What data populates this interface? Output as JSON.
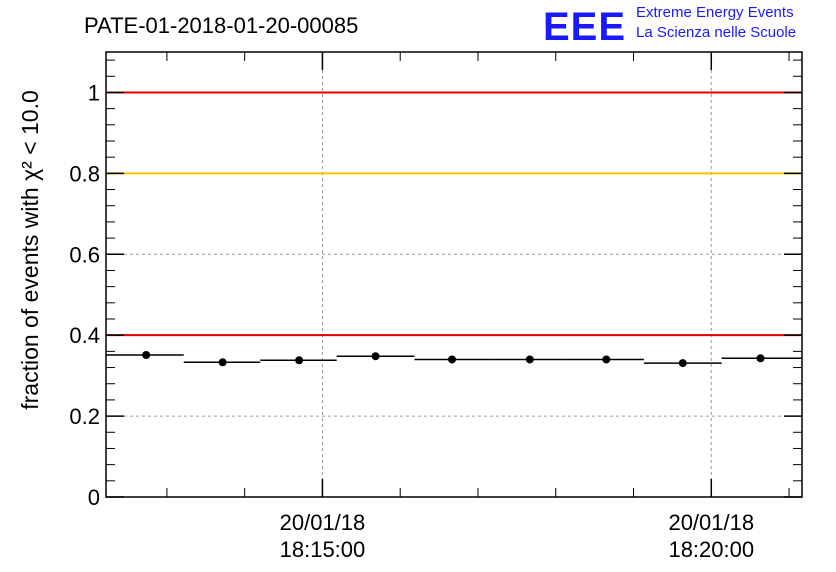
{
  "logo": {
    "mark": "EEE",
    "line1": "Extreme Energy Events",
    "line2": "La Scienza nelle Scuole",
    "color": "#1a1aff"
  },
  "chart_data": {
    "type": "scatter",
    "title": "PATE-01-2018-01-20-00085",
    "ylabel": "fraction of events with χ² < 10.0",
    "xlabel": "",
    "ylim": [
      0,
      1.1
    ],
    "xlim": [
      "18:12:13",
      "18:21:10"
    ],
    "y_ticks": [
      0,
      0.2,
      0.4,
      0.6,
      0.8,
      1
    ],
    "y_tick_labels": [
      "0",
      "0.2",
      "0.4",
      "0.6",
      "0.8",
      "1"
    ],
    "x_ticks": [
      {
        "time": "18:15:00",
        "date_label": "20/01/18",
        "time_label": "18:15:00"
      },
      {
        "time": "18:20:00",
        "date_label": "20/01/18",
        "time_label": "18:20:00"
      }
    ],
    "grid": true,
    "reference_lines": [
      {
        "y": 1.0,
        "color": "#e00000"
      },
      {
        "y": 0.8,
        "color": "#f5c400"
      },
      {
        "y": 0.4,
        "color": "#e00000"
      }
    ],
    "series": [
      {
        "marker": "circle",
        "color": "#000000",
        "points": [
          {
            "x": "18:12:44",
            "y": 0.351,
            "x_start": "18:12:13",
            "x_end": "18:13:13"
          },
          {
            "x": "18:13:43",
            "y": 0.333,
            "x_start": "18:13:13",
            "x_end": "18:14:12"
          },
          {
            "x": "18:14:42",
            "y": 0.338,
            "x_start": "18:14:12",
            "x_end": "18:15:11"
          },
          {
            "x": "18:15:41",
            "y": 0.348,
            "x_start": "18:15:11",
            "x_end": "18:16:11"
          },
          {
            "x": "18:16:40",
            "y": 0.34,
            "x_start": "18:16:11",
            "x_end": "18:17:10"
          },
          {
            "x": "18:17:40",
            "y": 0.34,
            "x_start": "18:17:10",
            "x_end": "18:18:09"
          },
          {
            "x": "18:18:39",
            "y": 0.34,
            "x_start": "18:18:09",
            "x_end": "18:19:08"
          },
          {
            "x": "18:19:38",
            "y": 0.331,
            "x_start": "18:19:08",
            "x_end": "18:20:08"
          },
          {
            "x": "18:20:38",
            "y": 0.343,
            "x_start": "18:20:08",
            "x_end": "18:21:10"
          }
        ]
      }
    ]
  }
}
